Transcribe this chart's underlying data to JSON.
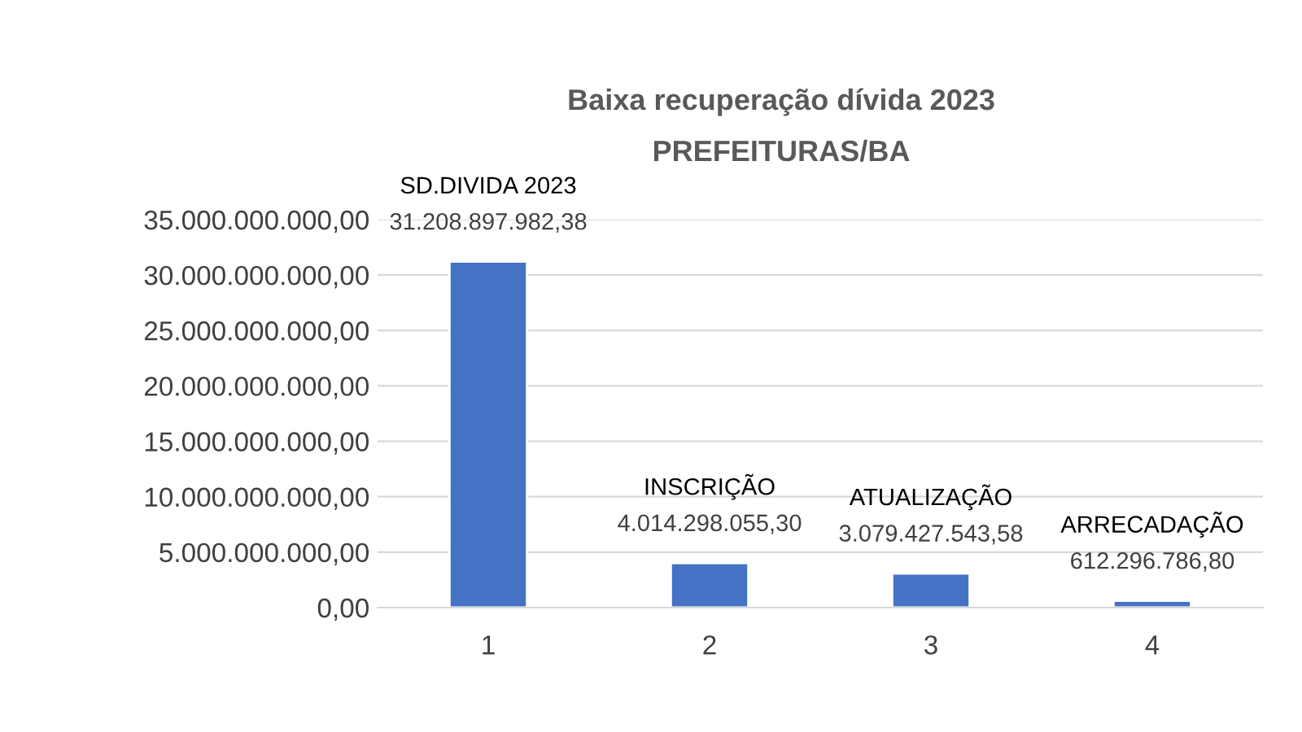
{
  "chart_data": {
    "type": "bar",
    "title": "Baixa recuperação dívida 2023",
    "subtitle": "PREFEITURAS/BA",
    "categories": [
      "1",
      "2",
      "3",
      "4"
    ],
    "values": [
      31208897982.38,
      4014298055.3,
      3079427543.58,
      612296786.8
    ],
    "value_labels": [
      "31.208.897.982,38",
      "4.014.298.055,30",
      "3.079.427.543,58",
      "612.296.786,80"
    ],
    "annotations": [
      {
        "text": "SD.DIVIDA 2023",
        "x": "1",
        "y": 31208897982.38
      },
      {
        "text": "INSCRIÇÃO",
        "x": "2",
        "y": 4014298055.3
      },
      {
        "text": "ATUALIZAÇÃO",
        "x": "3",
        "y": 3079427543.58
      },
      {
        "text": "ARRECADAÇÃO",
        "x": "4",
        "y": 612296786.8
      }
    ],
    "color": "#4472c4",
    "ylim": [
      0,
      35000000000
    ],
    "yticks": [
      {
        "value": 0,
        "label": "0,00"
      },
      {
        "value": 5000000000,
        "label": "5.000.000.000,00"
      },
      {
        "value": 10000000000,
        "label": "10.000.000.000,00"
      },
      {
        "value": 15000000000,
        "label": "15.000.000.000,00"
      },
      {
        "value": 20000000000,
        "label": "20.000.000.000,00"
      },
      {
        "value": 25000000000,
        "label": "25.000.000.000,00"
      },
      {
        "value": 30000000000,
        "label": "30.000.000.000,00"
      },
      {
        "value": 35000000000,
        "label": "35.000.000.000,00"
      }
    ],
    "grid": "y",
    "legend": false
  }
}
